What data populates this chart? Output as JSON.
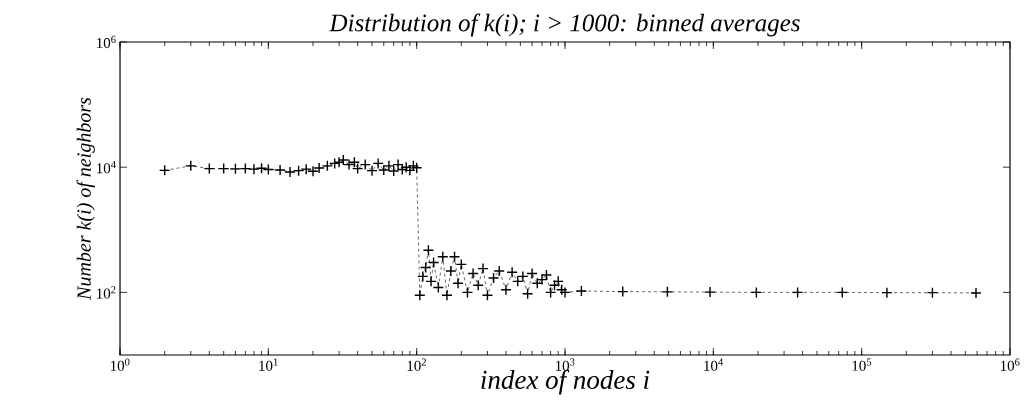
{
  "chart_data": {
    "type": "line",
    "title": "Distribution of k(i); i > 1000: binned averages",
    "xlabel": "index of nodes i",
    "ylabel": "Number k(i) of neighbors",
    "log": "xy",
    "marker": "cross",
    "line_style": "dashed",
    "grid": false,
    "xlim": [
      1,
      1000000
    ],
    "ylim": [
      10,
      1000000
    ],
    "xticks": [
      {
        "value": 1,
        "label": "10$^{0}$"
      },
      {
        "value": 10,
        "label": "10$^{1}$"
      },
      {
        "value": 100,
        "label": "10$^{2}$"
      },
      {
        "value": 1000,
        "label": "10$^{3}$"
      },
      {
        "value": 10000,
        "label": "10$^{4}$"
      },
      {
        "value": 100000,
        "label": "10$^{5}$"
      },
      {
        "value": 1000000,
        "label": "10$^{6}$"
      }
    ],
    "yticks": [
      {
        "value": 100,
        "label": "10$^{2}$"
      },
      {
        "value": 10000,
        "label": "10$^{4}$"
      },
      {
        "value": 1000000,
        "label": "10$^{6}$"
      }
    ],
    "series": [
      {
        "color": "#000000",
        "x": [
          2,
          3,
          4,
          5,
          6,
          7,
          8,
          9,
          10,
          12,
          14,
          16,
          18,
          20,
          22,
          25,
          28,
          30,
          32,
          35,
          38,
          40,
          45,
          50,
          55,
          60,
          65,
          70,
          75,
          80,
          85,
          90,
          95,
          100,
          105,
          110,
          115,
          120,
          125,
          130,
          140,
          150,
          160,
          170,
          180,
          190,
          200,
          220,
          240,
          260,
          280,
          300,
          330,
          360,
          400,
          440,
          480,
          520,
          560,
          600,
          650,
          700,
          750,
          800,
          850,
          900,
          950,
          1000,
          1290,
          2450,
          4900,
          9500,
          19500,
          37000,
          74000,
          148000,
          300000,
          590000
        ],
        "values": [
          8900,
          10500,
          9500,
          9500,
          9400,
          9500,
          9300,
          9600,
          9200,
          9000,
          8400,
          8800,
          9300,
          8600,
          9700,
          10500,
          11500,
          12000,
          13000,
          11000,
          12000,
          9500,
          11000,
          8800,
          11500,
          9000,
          10500,
          8700,
          11000,
          9200,
          10000,
          8900,
          10500,
          9800,
          90,
          180,
          250,
          470,
          150,
          300,
          120,
          370,
          90,
          220,
          370,
          140,
          280,
          100,
          200,
          130,
          240,
          90,
          170,
          220,
          110,
          210,
          150,
          180,
          95,
          200,
          140,
          160,
          190,
          100,
          130,
          150,
          110,
          100,
          105,
          103,
          102,
          101,
          100,
          100,
          100,
          99,
          99,
          98
        ]
      }
    ]
  }
}
